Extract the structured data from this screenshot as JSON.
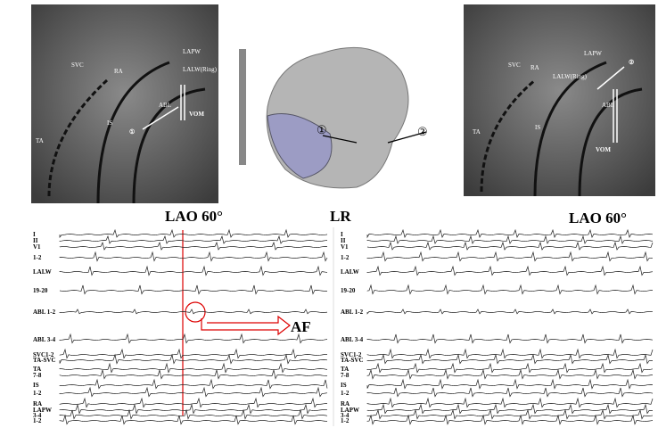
{
  "left_image": {
    "labels": [
      "SVC",
      "RA",
      "TA",
      "IS",
      "LAPW",
      "LALW(Ring)",
      "ABL",
      "VOM",
      "①"
    ],
    "caption": "LAO 60°"
  },
  "map": {
    "labels": [
      "①",
      "②"
    ],
    "caption": "LR"
  },
  "right_image": {
    "labels": [
      "SVC",
      "RA",
      "TA",
      "IS",
      "LAPW",
      "LALW(Ring)",
      "ABL",
      "VOM",
      "②"
    ],
    "caption": "LAO 60°"
  },
  "left_egm": {
    "leads": [
      "I",
      "II",
      "V1",
      "1-2",
      "LALW",
      "19-20",
      "ABL 1-2",
      "ABL 3-4",
      "SVC1-2",
      "TA-SVC",
      "TA",
      "7-8",
      "IS",
      "1-2",
      "RA",
      "LAPW",
      "3-4",
      "1-2"
    ],
    "annotation": "AF"
  },
  "right_egm": {
    "leads": [
      "I",
      "II",
      "V1",
      "1-2",
      "LALW",
      "19-20",
      "ABL 1-2",
      "ABL 3-4",
      "SVC1-2",
      "TA-SVC",
      "TA",
      "7-8",
      "IS",
      "1-2",
      "RA",
      "LAPW",
      "3-4",
      "1-2"
    ]
  }
}
